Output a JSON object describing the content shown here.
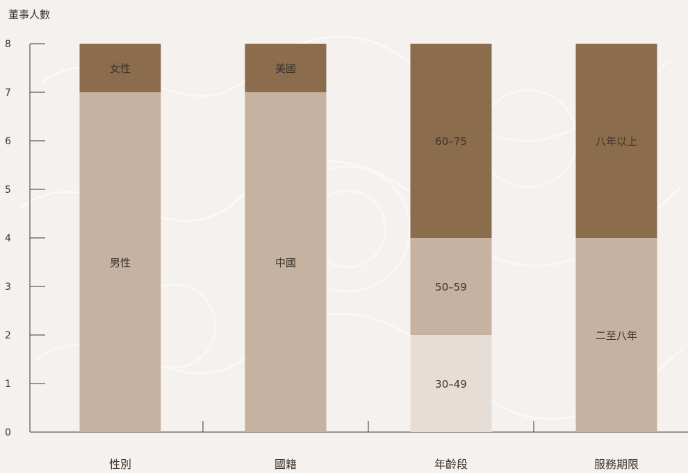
{
  "chart_data": {
    "type": "bar",
    "stacked": true,
    "ylabel": "董事人數",
    "ylim": [
      0,
      8
    ],
    "yticks": [
      0,
      1,
      2,
      3,
      4,
      5,
      6,
      7,
      8
    ],
    "categories": [
      "性別",
      "國籍",
      "年齡段",
      "服務期限"
    ],
    "bars": [
      {
        "category": "性別",
        "segments": [
          {
            "label": "男性",
            "value": 7,
            "color": "#c5b2a0"
          },
          {
            "label": "女性",
            "value": 1,
            "color": "#8b6c4d"
          }
        ]
      },
      {
        "category": "國籍",
        "segments": [
          {
            "label": "中國",
            "value": 7,
            "color": "#c5b2a0"
          },
          {
            "label": "美國",
            "value": 1,
            "color": "#8b6c4d"
          }
        ]
      },
      {
        "category": "年齡段",
        "segments": [
          {
            "label": "30–49",
            "value": 2,
            "color": "#e6ddd7"
          },
          {
            "label": "50–59",
            "value": 2,
            "color": "#c5b2a0"
          },
          {
            "label": "60–75",
            "value": 4,
            "color": "#8b6c4d"
          }
        ]
      },
      {
        "category": "服務期限",
        "segments": [
          {
            "label": "二至八年",
            "value": 4,
            "color": "#c5b2a0"
          },
          {
            "label": "八年以上",
            "value": 4,
            "color": "#8b6c4d"
          }
        ]
      }
    ],
    "grid": false,
    "legend": "none"
  }
}
